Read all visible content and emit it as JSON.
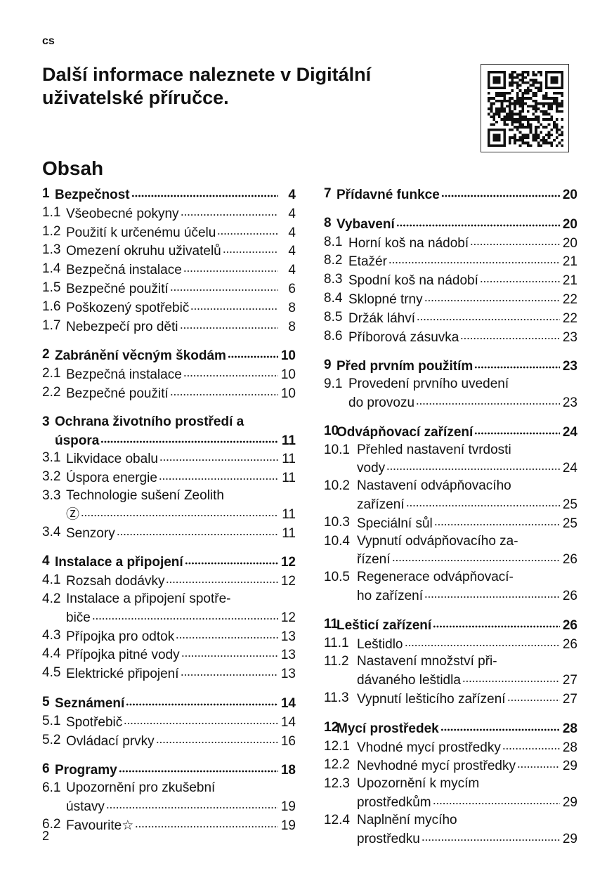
{
  "header": {
    "language": "cs",
    "title": "Další informace naleznete v Digitální uživatelské příručce.",
    "qr_icon": "qr-code-icon"
  },
  "toc": {
    "heading": "Obsah",
    "left": [
      {
        "head": {
          "num": "1",
          "lines": [
            "Bezpečnost"
          ],
          "page": "4"
        },
        "items": [
          {
            "num": "1.1",
            "lines": [
              "Všeobecné pokyny"
            ],
            "page": "4"
          },
          {
            "num": "1.2",
            "lines": [
              "Použití k určenému účelu"
            ],
            "page": "4"
          },
          {
            "num": "1.3",
            "lines": [
              "Omezení okruhu uživatelů"
            ],
            "page": "4"
          },
          {
            "num": "1.4",
            "lines": [
              "Bezpečná instalace"
            ],
            "page": "4"
          },
          {
            "num": "1.5",
            "lines": [
              "Bezpečné použití"
            ],
            "page": "6"
          },
          {
            "num": "1.6",
            "lines": [
              "Poškozený spotřebič"
            ],
            "page": "8"
          },
          {
            "num": "1.7",
            "lines": [
              "Nebezpečí pro děti"
            ],
            "page": "8"
          }
        ]
      },
      {
        "head": {
          "num": "2",
          "lines": [
            "Zabránění věcným škodám"
          ],
          "page": "10"
        },
        "items": [
          {
            "num": "2.1",
            "lines": [
              "Bezpečná instalace"
            ],
            "page": "10"
          },
          {
            "num": "2.2",
            "lines": [
              "Bezpečné použití"
            ],
            "page": "10"
          }
        ]
      },
      {
        "head": {
          "num": "3",
          "lines": [
            "Ochrana životního prostředí a",
            "úspora"
          ],
          "page": "11"
        },
        "items": [
          {
            "num": "3.1",
            "lines": [
              "Likvidace obalu"
            ],
            "page": "11"
          },
          {
            "num": "3.2",
            "lines": [
              "Úspora energie"
            ],
            "page": "11"
          },
          {
            "num": "3.3",
            "lines": [
              "Technologie sušení Zeolith",
              ""
            ],
            "page": "11",
            "icon": "Ⓩ",
            "icon_name": "zeolith-icon"
          },
          {
            "num": "3.4",
            "lines": [
              "Senzory"
            ],
            "page": "11"
          }
        ]
      },
      {
        "head": {
          "num": "4",
          "lines": [
            "Instalace a připojení"
          ],
          "page": "12"
        },
        "items": [
          {
            "num": "4.1",
            "lines": [
              "Rozsah dodávky"
            ],
            "page": "12"
          },
          {
            "num": "4.2",
            "lines": [
              "Instalace a připojení spotře-",
              "biče"
            ],
            "page": "12"
          },
          {
            "num": "4.3",
            "lines": [
              "Přípojka pro odtok"
            ],
            "page": "13"
          },
          {
            "num": "4.4",
            "lines": [
              "Přípojka pitné vody"
            ],
            "page": "13"
          },
          {
            "num": "4.5",
            "lines": [
              "Elektrické připojení"
            ],
            "page": "13"
          }
        ]
      },
      {
        "head": {
          "num": "5",
          "lines": [
            "Seznámení"
          ],
          "page": "14"
        },
        "items": [
          {
            "num": "5.1",
            "lines": [
              "Spotřebič"
            ],
            "page": "14"
          },
          {
            "num": "5.2",
            "lines": [
              "Ovládací prvky"
            ],
            "page": "16"
          }
        ]
      },
      {
        "head": {
          "num": "6",
          "lines": [
            "Programy"
          ],
          "page": "18"
        },
        "items": [
          {
            "num": "6.1",
            "lines": [
              "Upozornění pro zkušební",
              "ústavy"
            ],
            "page": "19"
          },
          {
            "num": "6.2",
            "lines": [
              "Favourite "
            ],
            "page": "19",
            "icon": "☆",
            "icon_name": "star-icon"
          }
        ]
      }
    ],
    "right": [
      {
        "head": {
          "num": "7",
          "lines": [
            "Přídavné funkce"
          ],
          "page": "20"
        },
        "items": []
      },
      {
        "head": {
          "num": "8",
          "lines": [
            "Vybavení"
          ],
          "page": "20"
        },
        "items": [
          {
            "num": "8.1",
            "lines": [
              "Horní koš na nádobí"
            ],
            "page": "20"
          },
          {
            "num": "8.2",
            "lines": [
              "Etažér"
            ],
            "page": "21"
          },
          {
            "num": "8.3",
            "lines": [
              "Spodní koš na nádobí"
            ],
            "page": "21"
          },
          {
            "num": "8.4",
            "lines": [
              "Sklopné trny"
            ],
            "page": "22"
          },
          {
            "num": "8.5",
            "lines": [
              "Držák láhví"
            ],
            "page": "22"
          },
          {
            "num": "8.6",
            "lines": [
              "Příborová zásuvka"
            ],
            "page": "23"
          }
        ]
      },
      {
        "head": {
          "num": "9",
          "lines": [
            "Před prvním použitím"
          ],
          "page": "23"
        },
        "items": [
          {
            "num": "9.1",
            "lines": [
              "Provedení prvního uvedení",
              "do provozu"
            ],
            "page": "23"
          }
        ]
      },
      {
        "head": {
          "num": "10",
          "lines": [
            "Odvápňovací zařízení"
          ],
          "page": "24"
        },
        "items": [
          {
            "num": "10.1",
            "lines": [
              "Přehled nastavení tvrdosti",
              "vody"
            ],
            "page": "24"
          },
          {
            "num": "10.2",
            "lines": [
              "Nastavení odvápňovacího",
              "zařízení"
            ],
            "page": "25"
          },
          {
            "num": "10.3",
            "lines": [
              "Speciální sůl"
            ],
            "page": "25"
          },
          {
            "num": "10.4",
            "lines": [
              "Vypnutí odvápňovacího za-",
              "řízení"
            ],
            "page": "26"
          },
          {
            "num": "10.5",
            "lines": [
              "Regenerace odvápňovací-",
              "ho zařízení"
            ],
            "page": "26"
          }
        ]
      },
      {
        "head": {
          "num": "11",
          "lines": [
            "Lešticí zařízení"
          ],
          "page": "26"
        },
        "items": [
          {
            "num": "11.1",
            "lines": [
              "Leštidlo"
            ],
            "page": "26"
          },
          {
            "num": "11.2",
            "lines": [
              "Nastavení množství při-",
              "dávaného leštidla"
            ],
            "page": "27"
          },
          {
            "num": "11.3",
            "lines": [
              "Vypnutí lešticího zařízení"
            ],
            "page": "27"
          }
        ]
      },
      {
        "head": {
          "num": "12",
          "lines": [
            "Mycí prostředek"
          ],
          "page": "28"
        },
        "items": [
          {
            "num": "12.1",
            "lines": [
              "Vhodné mycí prostředky"
            ],
            "page": "28"
          },
          {
            "num": "12.2",
            "lines": [
              "Nevhodné mycí prostředky"
            ],
            "page": "29"
          },
          {
            "num": "12.3",
            "lines": [
              "Upozornění k mycím",
              "prostředkům"
            ],
            "page": "29"
          },
          {
            "num": "12.4",
            "lines": [
              "Naplnění mycího",
              "prostředku"
            ],
            "page": "29"
          }
        ]
      }
    ]
  },
  "footer": {
    "page_number": "2"
  }
}
